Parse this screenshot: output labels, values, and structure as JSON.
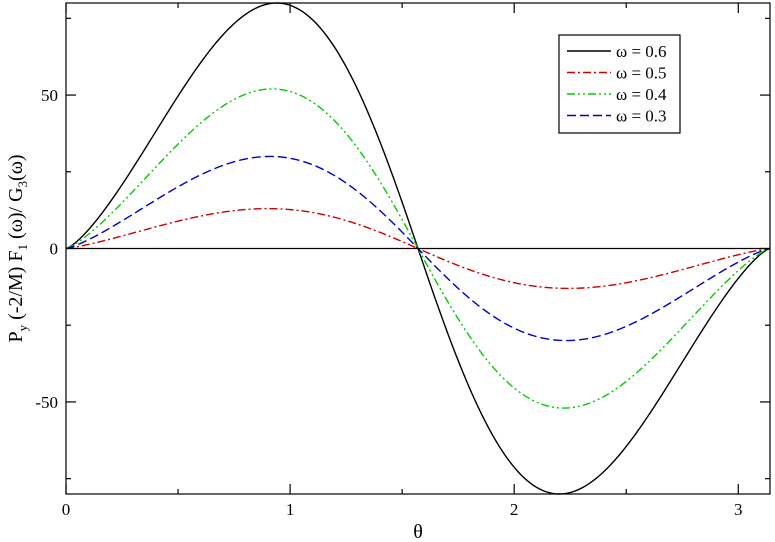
{
  "chart_data": {
    "type": "line",
    "title": "",
    "xlabel": "θ",
    "ylabel": {
      "parts": [
        "P",
        "y",
        " (-2/M) F",
        "1",
        " (ω)/ G",
        "3",
        "(ω)"
      ]
    },
    "xlim": [
      0,
      3.14159
    ],
    "ylim": [
      -80,
      80
    ],
    "x_ticks": [
      0,
      1,
      2,
      3
    ],
    "x_tick_labels": [
      "0",
      "1",
      "2",
      "3"
    ],
    "y_ticks": [
      -50,
      0,
      50
    ],
    "y_tick_labels": [
      "-50",
      "0",
      "50"
    ],
    "grid": false,
    "zero_line": true,
    "legend_position": "top-right",
    "series": [
      {
        "name": "ω = 0.6",
        "color": "#000000",
        "dash": "solid",
        "amplitude": 80,
        "peak_x": 0.94,
        "x": [
          0,
          0.3,
          0.6,
          0.94,
          1.2,
          1.571,
          1.9,
          2.2,
          2.55,
          2.85,
          3.14159
        ],
        "y": [
          0,
          37,
          67,
          80,
          68,
          0,
          -57,
          -80,
          -62,
          -32,
          0
        ]
      },
      {
        "name": "ω = 0.5",
        "color": "#cc0000",
        "dash": "dashdot",
        "amplitude": 13,
        "peak_x": 0.9,
        "x": [
          0,
          0.3,
          0.6,
          0.9,
          1.2,
          1.571,
          1.9,
          2.24,
          2.55,
          2.85,
          3.14159
        ],
        "y": [
          0,
          6.5,
          11,
          13,
          11,
          0,
          -9,
          -13,
          -11,
          -6,
          0
        ]
      },
      {
        "name": "ω = 0.4",
        "color": "#00cc00",
        "dash": "dashdotdot",
        "amplitude": 52,
        "peak_x": 0.92,
        "x": [
          0,
          0.3,
          0.6,
          0.92,
          1.2,
          1.571,
          1.9,
          2.22,
          2.55,
          2.85,
          3.14159
        ],
        "y": [
          0,
          25,
          44,
          52,
          44,
          0,
          -38,
          -52,
          -41,
          -21,
          0
        ]
      },
      {
        "name": "ω = 0.3",
        "color": "#0000cc",
        "dash": "dashed",
        "amplitude": 30,
        "peak_x": 0.91,
        "x": [
          0,
          0.3,
          0.6,
          0.91,
          1.2,
          1.571,
          1.9,
          2.23,
          2.55,
          2.85,
          3.14159
        ],
        "y": [
          0,
          14.5,
          25.5,
          30,
          25.5,
          0,
          -21,
          -30,
          -24,
          -12,
          0
        ]
      }
    ]
  }
}
